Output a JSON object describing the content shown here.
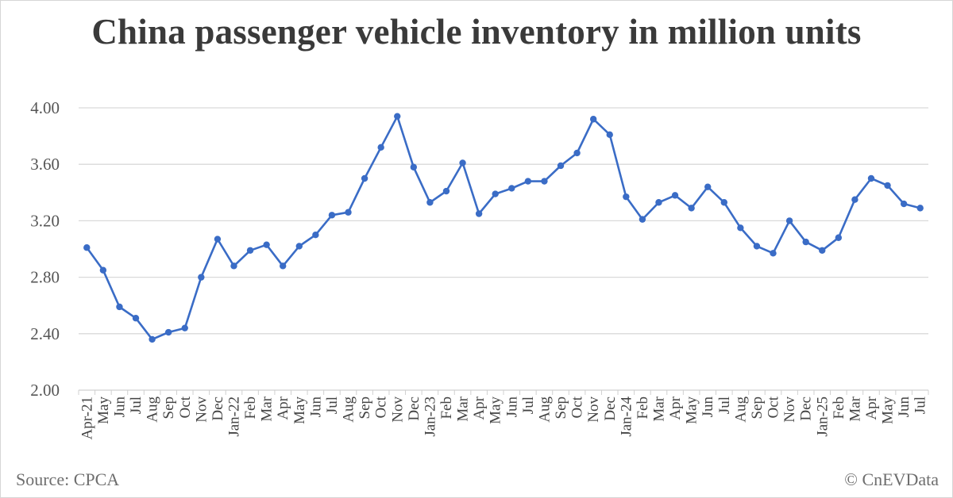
{
  "chart_data": {
    "type": "line",
    "title": "China passenger vehicle inventory in million units",
    "xlabel": "",
    "ylabel": "",
    "ylim": [
      2.0,
      4.0
    ],
    "yticks": [
      "2.00",
      "2.40",
      "2.80",
      "3.20",
      "3.60",
      "4.00"
    ],
    "ytick_values": [
      2.0,
      2.4,
      2.8,
      3.2,
      3.6,
      4.0
    ],
    "grid": true,
    "legend": "none",
    "categories": [
      "Apr-21",
      "May",
      "Jun",
      "Jul",
      "Aug",
      "Sep",
      "Oct",
      "Nov",
      "Dec",
      "Jan-22",
      "Feb",
      "Mar",
      "Apr",
      "May",
      "Jun",
      "Jul",
      "Aug",
      "Sep",
      "Oct",
      "Nov",
      "Dec",
      "Jan-23",
      "Feb",
      "Mar",
      "Apr",
      "May",
      "Jun",
      "Jul",
      "Aug",
      "Sep",
      "Oct",
      "Nov",
      "Dec",
      "Jan-24",
      "Feb",
      "Mar",
      "Apr",
      "May",
      "Jun",
      "Jul",
      "Aug",
      "Sep",
      "Oct",
      "Nov",
      "Dec",
      "Jan-25",
      "Feb",
      "Mar",
      "Apr",
      "May",
      "Jun",
      "Jul"
    ],
    "series": [
      {
        "name": "Passenger vehicle inventory",
        "color": "#3a6cc6",
        "values": [
          3.01,
          2.85,
          2.59,
          2.51,
          2.36,
          2.41,
          2.44,
          2.8,
          3.07,
          2.88,
          2.99,
          3.03,
          2.88,
          3.02,
          3.1,
          3.24,
          3.26,
          3.5,
          3.72,
          3.94,
          3.58,
          3.33,
          3.41,
          3.61,
          3.25,
          3.39,
          3.43,
          3.48,
          3.48,
          3.59,
          3.68,
          3.92,
          3.81,
          3.37,
          3.21,
          3.33,
          3.38,
          3.29,
          3.44,
          3.33,
          3.15,
          3.02,
          2.97,
          3.2,
          3.05,
          2.99,
          3.08,
          3.35,
          3.5,
          3.45,
          3.32,
          3.29
        ]
      }
    ]
  },
  "footer": {
    "source": "Source: CPCA",
    "copyright": "© CnEVData"
  },
  "colors": {
    "line": "#3a6cc6",
    "grid": "#d9d9d9",
    "title": "#3a3a3a"
  }
}
